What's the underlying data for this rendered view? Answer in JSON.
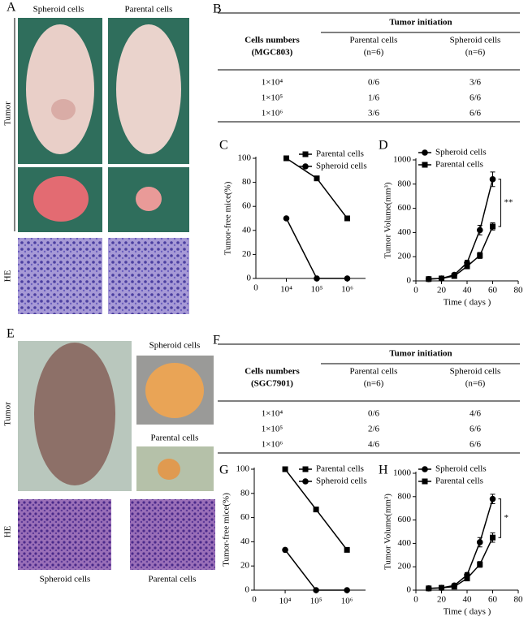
{
  "panels": {
    "A": {
      "label": "A",
      "columns": [
        "Spheroid cells",
        "Parental cells"
      ],
      "rows": [
        "Tumor",
        "HE"
      ]
    },
    "E": {
      "label": "E",
      "rows": [
        "Tumor",
        "HE"
      ],
      "side_labels": [
        "Spheroid cells",
        "Parental cells"
      ],
      "bottom_labels": [
        "Spheroid cells",
        "Parental cells"
      ]
    }
  },
  "tables": [
    {
      "label": "B",
      "group_header": "Tumor initiation",
      "row_header": [
        "Cells numbers",
        "(MGC803)"
      ],
      "columns": [
        [
          "Parental cells",
          "(n=6)"
        ],
        [
          "Spheroid cells",
          "(n=6)"
        ]
      ],
      "rows": [
        [
          "1×10⁴",
          "0/6",
          "3/6"
        ],
        [
          "1×10⁵",
          "1/6",
          "6/6"
        ],
        [
          "1×10⁶",
          "3/6",
          "6/6"
        ]
      ]
    },
    {
      "label": "F",
      "group_header": "Tumor initiation",
      "row_header": [
        "Cells numbers",
        "(SGC7901)"
      ],
      "columns": [
        [
          "Parental cells",
          "(n=6)"
        ],
        [
          "Spheroid cells",
          "(n=6)"
        ]
      ],
      "rows": [
        [
          "1×10⁴",
          "0/6",
          "4/6"
        ],
        [
          "1×10⁵",
          "2/6",
          "6/6"
        ],
        [
          "1×10⁶",
          "4/6",
          "6/6"
        ]
      ]
    }
  ],
  "chart_data": [
    {
      "type": "line",
      "label": "C",
      "ylabel": "Tumor-free mice(%)",
      "x_origin_label": "0",
      "categories": [
        "10⁴",
        "10⁵",
        "10⁶"
      ],
      "ylim": [
        0,
        100
      ],
      "yticks": [
        0,
        20,
        40,
        60,
        80,
        100
      ],
      "series": [
        {
          "name": "Parental cells",
          "color": "#000000",
          "marker": "square",
          "values": [
            100,
            83.3,
            50
          ]
        },
        {
          "name": "Spheroid cells",
          "color": "#000000",
          "marker": "circle",
          "values": [
            50,
            0,
            0
          ]
        }
      ]
    },
    {
      "type": "line",
      "label": "D",
      "xlabel": "Time ( days )",
      "ylabel": "Tumor Volume(mm³)",
      "x": [
        10,
        20,
        30,
        40,
        50,
        60
      ],
      "xlim": [
        0,
        80
      ],
      "xticks": [
        0,
        20,
        40,
        60,
        80
      ],
      "ylim": [
        0,
        1000
      ],
      "yticks": [
        0,
        200,
        400,
        600,
        800,
        1000
      ],
      "annotation": "**",
      "series": [
        {
          "name": "Spheroid cells",
          "color": "#000000",
          "marker": "circle",
          "values": [
            15,
            20,
            50,
            150,
            420,
            840
          ],
          "errors": [
            3,
            5,
            10,
            20,
            40,
            60
          ]
        },
        {
          "name": "Parental cells",
          "color": "#000000",
          "marker": "square",
          "values": [
            15,
            20,
            40,
            120,
            210,
            450
          ],
          "errors": [
            3,
            5,
            8,
            15,
            25,
            30
          ]
        }
      ]
    },
    {
      "type": "line",
      "label": "G",
      "ylabel": "Tumor-free mice(%)",
      "x_origin_label": "0",
      "categories": [
        "10⁴",
        "10⁵",
        "10⁶"
      ],
      "ylim": [
        0,
        100
      ],
      "yticks": [
        0,
        20,
        40,
        60,
        80,
        100
      ],
      "series": [
        {
          "name": "Parental cells",
          "color": "#000000",
          "marker": "square",
          "values": [
            100,
            66.7,
            33.3
          ]
        },
        {
          "name": "Spheroid cells",
          "color": "#000000",
          "marker": "circle",
          "values": [
            33.3,
            0,
            0
          ]
        }
      ]
    },
    {
      "type": "line",
      "label": "H",
      "xlabel": "Time ( days )",
      "ylabel": "Tumor Volume(mm³)",
      "x": [
        10,
        20,
        30,
        40,
        50,
        60
      ],
      "xlim": [
        0,
        80
      ],
      "xticks": [
        0,
        20,
        40,
        60,
        80
      ],
      "ylim": [
        0,
        1000
      ],
      "yticks": [
        0,
        200,
        400,
        600,
        800,
        1000
      ],
      "annotation": "*",
      "series": [
        {
          "name": "Spheroid cells",
          "color": "#000000",
          "marker": "circle",
          "values": [
            15,
            20,
            40,
            130,
            410,
            780
          ],
          "errors": [
            3,
            5,
            10,
            20,
            40,
            40
          ]
        },
        {
          "name": "Parental cells",
          "color": "#000000",
          "marker": "square",
          "values": [
            15,
            20,
            30,
            100,
            220,
            450
          ],
          "errors": [
            3,
            5,
            8,
            15,
            25,
            40
          ]
        }
      ]
    }
  ]
}
